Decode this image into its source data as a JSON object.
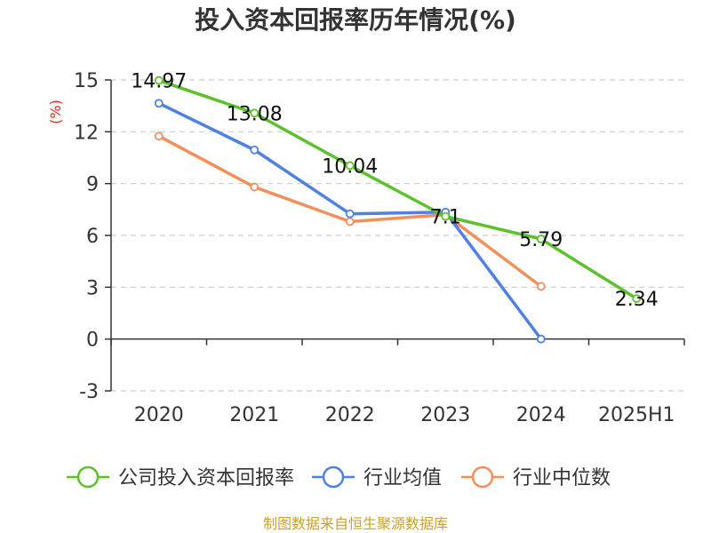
{
  "chart_data": {
    "type": "line",
    "title": "投入资本回报率历年情况(%)",
    "ylabel": "(%)",
    "categories": [
      "2020",
      "2021",
      "2022",
      "2023",
      "2024",
      "2025H1"
    ],
    "yticks": [
      "15",
      "12",
      "9",
      "6",
      "3",
      "0",
      "-3"
    ],
    "ylim": [
      -3,
      15
    ],
    "grid": true,
    "legend_position": "bottom",
    "series": [
      {
        "name": "公司投入资本回报率",
        "color": "#5cc12d",
        "values": [
          14.97,
          13.08,
          10.04,
          7.1,
          5.79,
          2.34
        ],
        "labels": [
          "14.97",
          "13.08",
          "10.04",
          "7.1",
          "5.79",
          "2.34"
        ]
      },
      {
        "name": "行业均值",
        "color": "#4f81e0",
        "values": [
          13.65,
          10.95,
          7.25,
          7.35,
          0.0,
          null
        ],
        "labels": []
      },
      {
        "name": "行业中位数",
        "color": "#f28f5b",
        "values": [
          11.75,
          8.8,
          6.8,
          7.2,
          3.05,
          null
        ],
        "labels": []
      }
    ]
  },
  "source": "制图数据来自恒生聚源数据库"
}
